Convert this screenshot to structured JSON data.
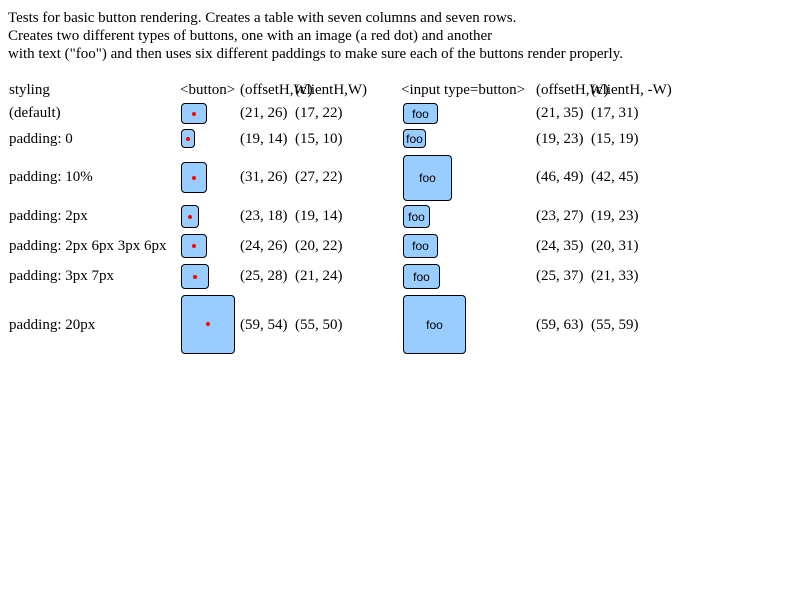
{
  "intro": {
    "line1": "Tests for basic button rendering. Creates a table with seven columns and seven rows.",
    "line2": "Creates two different types of buttons, one with an image (a red dot) and another",
    "line3": "with text (\"foo\") and then uses six different paddings to make sure each of the buttons render properly."
  },
  "headers": {
    "styling": "styling",
    "button": "<button>",
    "offset1": "(offsetH,W)",
    "client1": "(clientH,W)",
    "input": "<input type=button>",
    "offset2": "(offsetH,W)",
    "client2": "(clientH, -W)"
  },
  "button_text": "foo",
  "colors": {
    "button_fill": "#99ccff",
    "dot": "#ff0000"
  },
  "rows": [
    {
      "style": "(default)",
      "btn_offset": "(21, 26)",
      "btn_client": "(17, 22)",
      "input_offset": "(21, 35)",
      "input_client": "(17, 31)"
    },
    {
      "style": "padding: 0",
      "btn_offset": "(19, 14)",
      "btn_client": "(15, 10)",
      "input_offset": "(19, 23)",
      "input_client": "(15, 19)"
    },
    {
      "style": "padding: 10%",
      "btn_offset": "(31, 26)",
      "btn_client": "(27, 22)",
      "input_offset": "(46, 49)",
      "input_client": "(42, 45)"
    },
    {
      "style": "padding: 2px",
      "btn_offset": "(23, 18)",
      "btn_client": "(19, 14)",
      "input_offset": "(23, 27)",
      "input_client": "(19, 23)"
    },
    {
      "style": "padding: 2px 6px 3px 6px",
      "btn_offset": "(24, 26)",
      "btn_client": "(20, 22)",
      "input_offset": "(24, 35)",
      "input_client": "(20, 31)"
    },
    {
      "style": "padding: 3px 7px",
      "btn_offset": "(25, 28)",
      "btn_client": "(21, 24)",
      "input_offset": "(25, 37)",
      "input_client": "(21, 33)"
    },
    {
      "style": "padding: 20px",
      "btn_offset": "(59, 54)",
      "btn_client": "(55, 50)",
      "input_offset": "(59, 63)",
      "input_client": "(55, 59)"
    }
  ]
}
